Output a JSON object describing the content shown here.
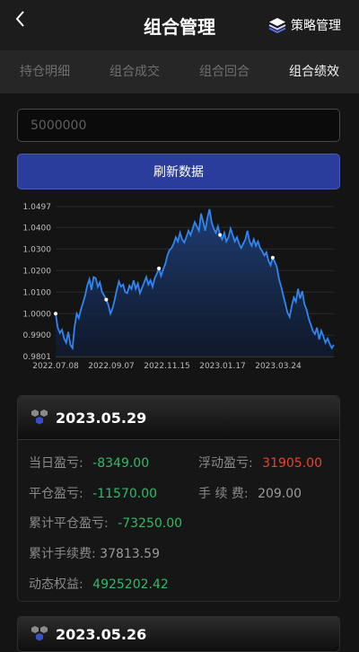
{
  "header": {
    "title": "组合管理",
    "strategy_label": "策略管理"
  },
  "tabs": [
    {
      "label": "持仓明细",
      "active": false
    },
    {
      "label": "组合成交",
      "active": false
    },
    {
      "label": "组合回合",
      "active": false
    },
    {
      "label": "组合绩效",
      "active": true
    }
  ],
  "capital_input": {
    "placeholder": "5000000"
  },
  "refresh_button": {
    "label": "刷新数据"
  },
  "colors": {
    "accent": "#2a3d9c",
    "line": "#2f86f0",
    "profit": "#e6452c",
    "loss": "#2dbb69"
  },
  "chart_data": {
    "type": "area",
    "y_ticks": [
      "1.0497",
      "1.0400",
      "1.0300",
      "1.0200",
      "1.0100",
      "1.0000",
      "0.9900",
      "0.9801"
    ],
    "x_ticks": [
      "2022.07.08",
      "2022.09.07",
      "2022.11.15",
      "2023.01.17",
      "2023.03.24"
    ],
    "ylim": [
      0.9801,
      1.0497
    ],
    "grid": true,
    "series": [
      {
        "values": [
          1.0,
          0.9935,
          0.991,
          0.9925,
          0.9885,
          0.9865,
          0.9915,
          0.9855,
          0.984,
          0.994,
          1.0,
          0.998,
          1.002,
          1.005,
          1.0085,
          1.013,
          1.016,
          1.011,
          1.017,
          1.0165,
          1.0125,
          1.0145,
          1.01,
          1.0085,
          1.0065,
          1.004,
          1.0,
          1.0025,
          1.0065,
          1.011,
          1.015,
          1.0125,
          1.0135,
          1.01,
          1.0095,
          1.013,
          1.0115,
          1.0155,
          1.0115,
          1.014,
          1.0095,
          1.012,
          1.0145,
          1.017,
          1.0135,
          1.0155,
          1.0125,
          1.0165,
          1.0185,
          1.021,
          1.0175,
          1.0205,
          1.023,
          1.027,
          1.0295,
          1.0305,
          1.0325,
          1.0355,
          1.0335,
          1.0375,
          1.0345,
          1.033,
          1.0355,
          1.0385,
          1.0365,
          1.0395,
          1.0425,
          1.0405,
          1.0385,
          1.0465,
          1.0425,
          1.0385,
          1.0445,
          1.0485,
          1.0425,
          1.0395,
          1.0375,
          1.0405,
          1.0365,
          1.0345,
          1.0375,
          1.0335,
          1.0355,
          1.0395,
          1.0365,
          1.0335,
          1.0355,
          1.0325,
          1.0305,
          1.0325,
          1.0345,
          1.0385,
          1.0335,
          1.0315,
          1.0345,
          1.0315,
          1.0335,
          1.0305,
          1.029,
          1.027,
          1.0285,
          1.0245,
          1.0225,
          1.026,
          1.024,
          1.0215,
          1.016,
          1.0125,
          1.0085,
          1.0045,
          1.0005,
          0.9985,
          1.0035,
          1.0075,
          1.0055,
          1.0115,
          1.007,
          1.0105,
          1.0045,
          1.002,
          0.998,
          0.995,
          0.992,
          0.9905,
          0.9935,
          0.988,
          0.992,
          0.9895,
          0.9865,
          0.9885,
          0.986,
          0.984,
          0.9855
        ]
      }
    ],
    "markers": [
      0,
      24,
      49,
      78,
      103
    ]
  },
  "records": [
    {
      "date": "2023.05.29",
      "day_pnl_label": "当日盈亏:",
      "day_pnl": "-8349.00",
      "float_pnl_label": "浮动盈亏:",
      "float_pnl": "31905.00",
      "close_pnl_label": "平仓盈亏:",
      "close_pnl": "-11570.00",
      "fee_label": "手 续 费:",
      "fee": "209.00",
      "cum_close_pnl_label": "累计平仓盈亏:",
      "cum_close_pnl": "-73250.00",
      "cum_fee_label": "累计手续费:",
      "cum_fee": "37813.59",
      "equity_label": "动态权益:",
      "equity": "4925202.42"
    },
    {
      "date": "2023.05.26"
    }
  ]
}
